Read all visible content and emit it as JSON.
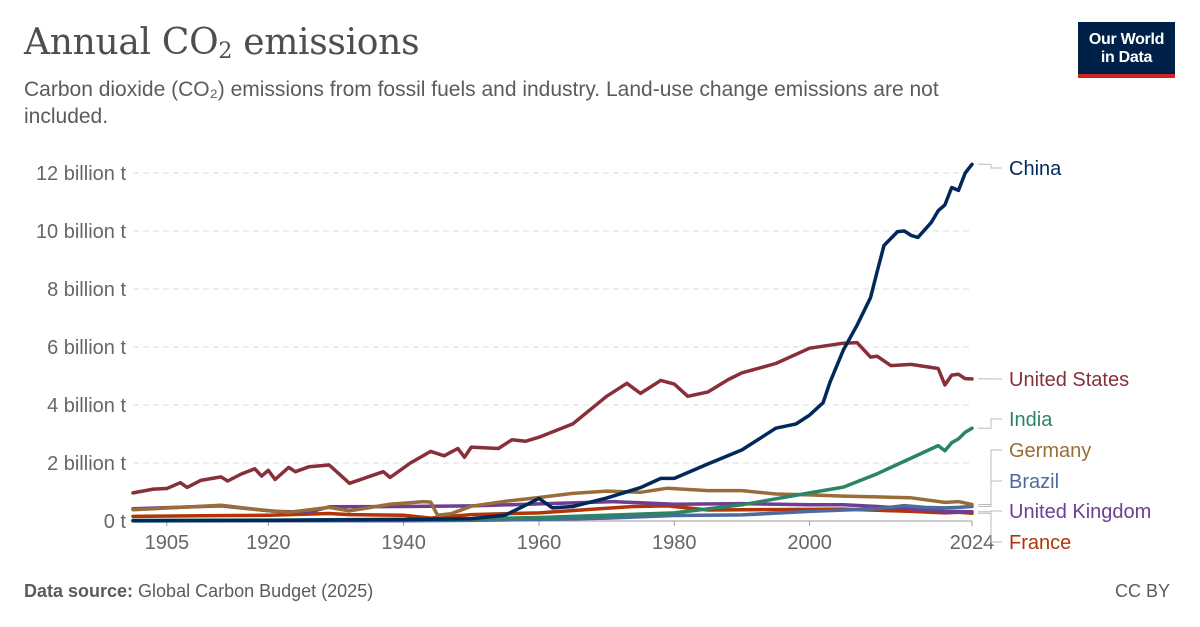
{
  "header": {
    "title_main": "Annual CO",
    "title_sub": "2",
    "title_end": " emissions",
    "subtitle": "Carbon dioxide (CO₂) emissions from fossil fuels and industry. Land-use change emissions are not included."
  },
  "logo": {
    "line1": "Our World",
    "line2": "in Data"
  },
  "footer": {
    "source_label": "Data source:",
    "source_text": " Global Carbon Budget (2025)",
    "license": "CC BY"
  },
  "chart_data": {
    "type": "line",
    "title": "Annual CO₂ emissions",
    "xlabel": "",
    "ylabel": "",
    "xlim": [
      1900,
      2024
    ],
    "ylim": [
      0,
      12.5
    ],
    "unit": "billion t",
    "y_ticks": [
      {
        "value": 0,
        "label": "0 t"
      },
      {
        "value": 2,
        "label": "2 billion t"
      },
      {
        "value": 4,
        "label": "4 billion t"
      },
      {
        "value": 6,
        "label": "6 billion t"
      },
      {
        "value": 8,
        "label": "8 billion t"
      },
      {
        "value": 10,
        "label": "10 billion t"
      },
      {
        "value": 12,
        "label": "12 billion t"
      }
    ],
    "x_ticks": [
      {
        "value": 1905,
        "label": "1905"
      },
      {
        "value": 1920,
        "label": "1920"
      },
      {
        "value": 1940,
        "label": "1940"
      },
      {
        "value": 1960,
        "label": "1960"
      },
      {
        "value": 1980,
        "label": "1980"
      },
      {
        "value": 2000,
        "label": "2000"
      },
      {
        "value": 2024,
        "label": "2024"
      }
    ],
    "series": [
      {
        "name": "France",
        "color": "#b13507",
        "points": [
          [
            1900,
            0.16
          ],
          [
            1910,
            0.18
          ],
          [
            1920,
            0.2
          ],
          [
            1929,
            0.26
          ],
          [
            1932,
            0.22
          ],
          [
            1940,
            0.2
          ],
          [
            1944,
            0.1
          ],
          [
            1945,
            0.12
          ],
          [
            1950,
            0.22
          ],
          [
            1960,
            0.28
          ],
          [
            1970,
            0.44
          ],
          [
            1974,
            0.5
          ],
          [
            1979,
            0.52
          ],
          [
            1985,
            0.38
          ],
          [
            1990,
            0.39
          ],
          [
            2000,
            0.4
          ],
          [
            2005,
            0.41
          ],
          [
            2010,
            0.37
          ],
          [
            2015,
            0.33
          ],
          [
            2020,
            0.28
          ],
          [
            2022,
            0.3
          ],
          [
            2024,
            0.27
          ]
        ]
      },
      {
        "name": "United Kingdom",
        "color": "#6d3e91",
        "points": [
          [
            1900,
            0.42
          ],
          [
            1913,
            0.52
          ],
          [
            1921,
            0.33
          ],
          [
            1926,
            0.3
          ],
          [
            1929,
            0.49
          ],
          [
            1940,
            0.5
          ],
          [
            1950,
            0.52
          ],
          [
            1960,
            0.59
          ],
          [
            1971,
            0.67
          ],
          [
            1980,
            0.58
          ],
          [
            1990,
            0.6
          ],
          [
            2000,
            0.56
          ],
          [
            2005,
            0.56
          ],
          [
            2010,
            0.5
          ],
          [
            2015,
            0.42
          ],
          [
            2020,
            0.33
          ],
          [
            2024,
            0.32
          ]
        ]
      },
      {
        "name": "Brazil",
        "color": "#4c6a9c",
        "points": [
          [
            1900,
            0.002
          ],
          [
            1920,
            0.006
          ],
          [
            1940,
            0.01
          ],
          [
            1950,
            0.02
          ],
          [
            1960,
            0.05
          ],
          [
            1970,
            0.1
          ],
          [
            1980,
            0.19
          ],
          [
            1990,
            0.21
          ],
          [
            2000,
            0.33
          ],
          [
            2010,
            0.42
          ],
          [
            2014,
            0.53
          ],
          [
            2017,
            0.47
          ],
          [
            2020,
            0.45
          ],
          [
            2022,
            0.47
          ],
          [
            2024,
            0.5
          ]
        ]
      },
      {
        "name": "Germany",
        "color": "#996d39",
        "points": [
          [
            1900,
            0.39
          ],
          [
            1913,
            0.54
          ],
          [
            1919,
            0.38
          ],
          [
            1923,
            0.3
          ],
          [
            1929,
            0.47
          ],
          [
            1932,
            0.35
          ],
          [
            1938,
            0.58
          ],
          [
            1943,
            0.67
          ],
          [
            1944,
            0.65
          ],
          [
            1945,
            0.2
          ],
          [
            1947,
            0.25
          ],
          [
            1950,
            0.51
          ],
          [
            1955,
            0.68
          ],
          [
            1960,
            0.81
          ],
          [
            1965,
            0.95
          ],
          [
            1970,
            1.03
          ],
          [
            1975,
            0.99
          ],
          [
            1979,
            1.13
          ],
          [
            1985,
            1.05
          ],
          [
            1990,
            1.05
          ],
          [
            1995,
            0.93
          ],
          [
            2000,
            0.9
          ],
          [
            2005,
            0.86
          ],
          [
            2010,
            0.83
          ],
          [
            2015,
            0.8
          ],
          [
            2020,
            0.64
          ],
          [
            2022,
            0.67
          ],
          [
            2024,
            0.57
          ]
        ]
      },
      {
        "name": "India",
        "color": "#2c8465",
        "points": [
          [
            1900,
            0.02
          ],
          [
            1920,
            0.03
          ],
          [
            1940,
            0.06
          ],
          [
            1950,
            0.07
          ],
          [
            1960,
            0.12
          ],
          [
            1970,
            0.2
          ],
          [
            1980,
            0.28
          ],
          [
            1990,
            0.56
          ],
          [
            2000,
            0.97
          ],
          [
            2005,
            1.17
          ],
          [
            2010,
            1.63
          ],
          [
            2015,
            2.17
          ],
          [
            2019,
            2.6
          ],
          [
            2020,
            2.42
          ],
          [
            2021,
            2.7
          ],
          [
            2022,
            2.83
          ],
          [
            2023,
            3.06
          ],
          [
            2024,
            3.2
          ]
        ]
      },
      {
        "name": "United States",
        "color": "#883039",
        "points": [
          [
            1900,
            0.97
          ],
          [
            1903,
            1.1
          ],
          [
            1905,
            1.12
          ],
          [
            1907,
            1.32
          ],
          [
            1908,
            1.16
          ],
          [
            1910,
            1.4
          ],
          [
            1913,
            1.52
          ],
          [
            1914,
            1.38
          ],
          [
            1916,
            1.62
          ],
          [
            1918,
            1.8
          ],
          [
            1919,
            1.55
          ],
          [
            1920,
            1.75
          ],
          [
            1921,
            1.43
          ],
          [
            1923,
            1.85
          ],
          [
            1924,
            1.7
          ],
          [
            1926,
            1.87
          ],
          [
            1929,
            1.93
          ],
          [
            1932,
            1.3
          ],
          [
            1937,
            1.7
          ],
          [
            1938,
            1.5
          ],
          [
            1941,
            2.0
          ],
          [
            1944,
            2.4
          ],
          [
            1946,
            2.25
          ],
          [
            1948,
            2.5
          ],
          [
            1949,
            2.2
          ],
          [
            1950,
            2.55
          ],
          [
            1954,
            2.5
          ],
          [
            1956,
            2.8
          ],
          [
            1958,
            2.75
          ],
          [
            1960,
            2.89
          ],
          [
            1965,
            3.35
          ],
          [
            1970,
            4.3
          ],
          [
            1973,
            4.75
          ],
          [
            1975,
            4.4
          ],
          [
            1978,
            4.85
          ],
          [
            1980,
            4.72
          ],
          [
            1982,
            4.3
          ],
          [
            1985,
            4.45
          ],
          [
            1988,
            4.88
          ],
          [
            1990,
            5.11
          ],
          [
            1995,
            5.43
          ],
          [
            2000,
            5.96
          ],
          [
            2005,
            6.13
          ],
          [
            2007,
            6.15
          ],
          [
            2009,
            5.65
          ],
          [
            2010,
            5.68
          ],
          [
            2012,
            5.36
          ],
          [
            2015,
            5.4
          ],
          [
            2019,
            5.26
          ],
          [
            2020,
            4.69
          ],
          [
            2021,
            5.03
          ],
          [
            2022,
            5.06
          ],
          [
            2023,
            4.91
          ],
          [
            2024,
            4.9
          ]
        ]
      },
      {
        "name": "China",
        "color": "#00295b",
        "points": [
          [
            1900,
            0.01
          ],
          [
            1920,
            0.02
          ],
          [
            1940,
            0.05
          ],
          [
            1950,
            0.08
          ],
          [
            1955,
            0.2
          ],
          [
            1958,
            0.54
          ],
          [
            1960,
            0.78
          ],
          [
            1962,
            0.45
          ],
          [
            1965,
            0.5
          ],
          [
            1970,
            0.79
          ],
          [
            1975,
            1.15
          ],
          [
            1978,
            1.47
          ],
          [
            1980,
            1.47
          ],
          [
            1985,
            1.97
          ],
          [
            1990,
            2.45
          ],
          [
            1995,
            3.2
          ],
          [
            1998,
            3.35
          ],
          [
            2000,
            3.65
          ],
          [
            2002,
            4.08
          ],
          [
            2003,
            4.78
          ],
          [
            2005,
            5.9
          ],
          [
            2007,
            6.75
          ],
          [
            2009,
            7.7
          ],
          [
            2010,
            8.62
          ],
          [
            2011,
            9.5
          ],
          [
            2013,
            9.98
          ],
          [
            2014,
            10.0
          ],
          [
            2015,
            9.85
          ],
          [
            2016,
            9.78
          ],
          [
            2018,
            10.3
          ],
          [
            2019,
            10.7
          ],
          [
            2020,
            10.9
          ],
          [
            2021,
            11.5
          ],
          [
            2022,
            11.4
          ],
          [
            2023,
            12.0
          ],
          [
            2024,
            12.3
          ]
        ]
      }
    ],
    "end_labels": [
      {
        "name": "China",
        "color": "#00295b"
      },
      {
        "name": "United States",
        "color": "#883039"
      },
      {
        "name": "India",
        "color": "#2c8465"
      },
      {
        "name": "Germany",
        "color": "#996d39"
      },
      {
        "name": "Brazil",
        "color": "#4c6a9c"
      },
      {
        "name": "United Kingdom",
        "color": "#6d3e91"
      },
      {
        "name": "France",
        "color": "#b13507"
      }
    ]
  }
}
